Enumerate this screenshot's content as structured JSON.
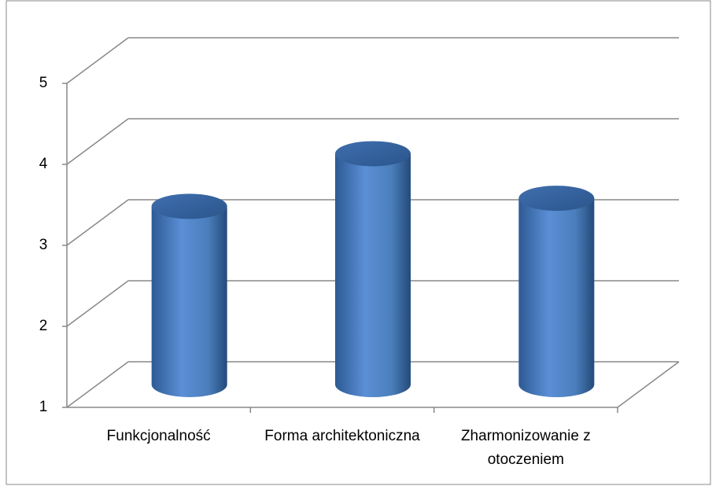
{
  "chart_data": {
    "type": "bar3d-cylinder",
    "categories": [
      "Funkcjonalność",
      "Forma architektoniczna",
      "Zharmonizowanie z otoczeniem"
    ],
    "values": [
      3.2,
      3.85,
      3.3
    ],
    "color": "#4a7ebb",
    "ylim": [
      1,
      5
    ],
    "yticks": [
      1,
      2,
      3,
      4,
      5
    ],
    "grid": true
  }
}
